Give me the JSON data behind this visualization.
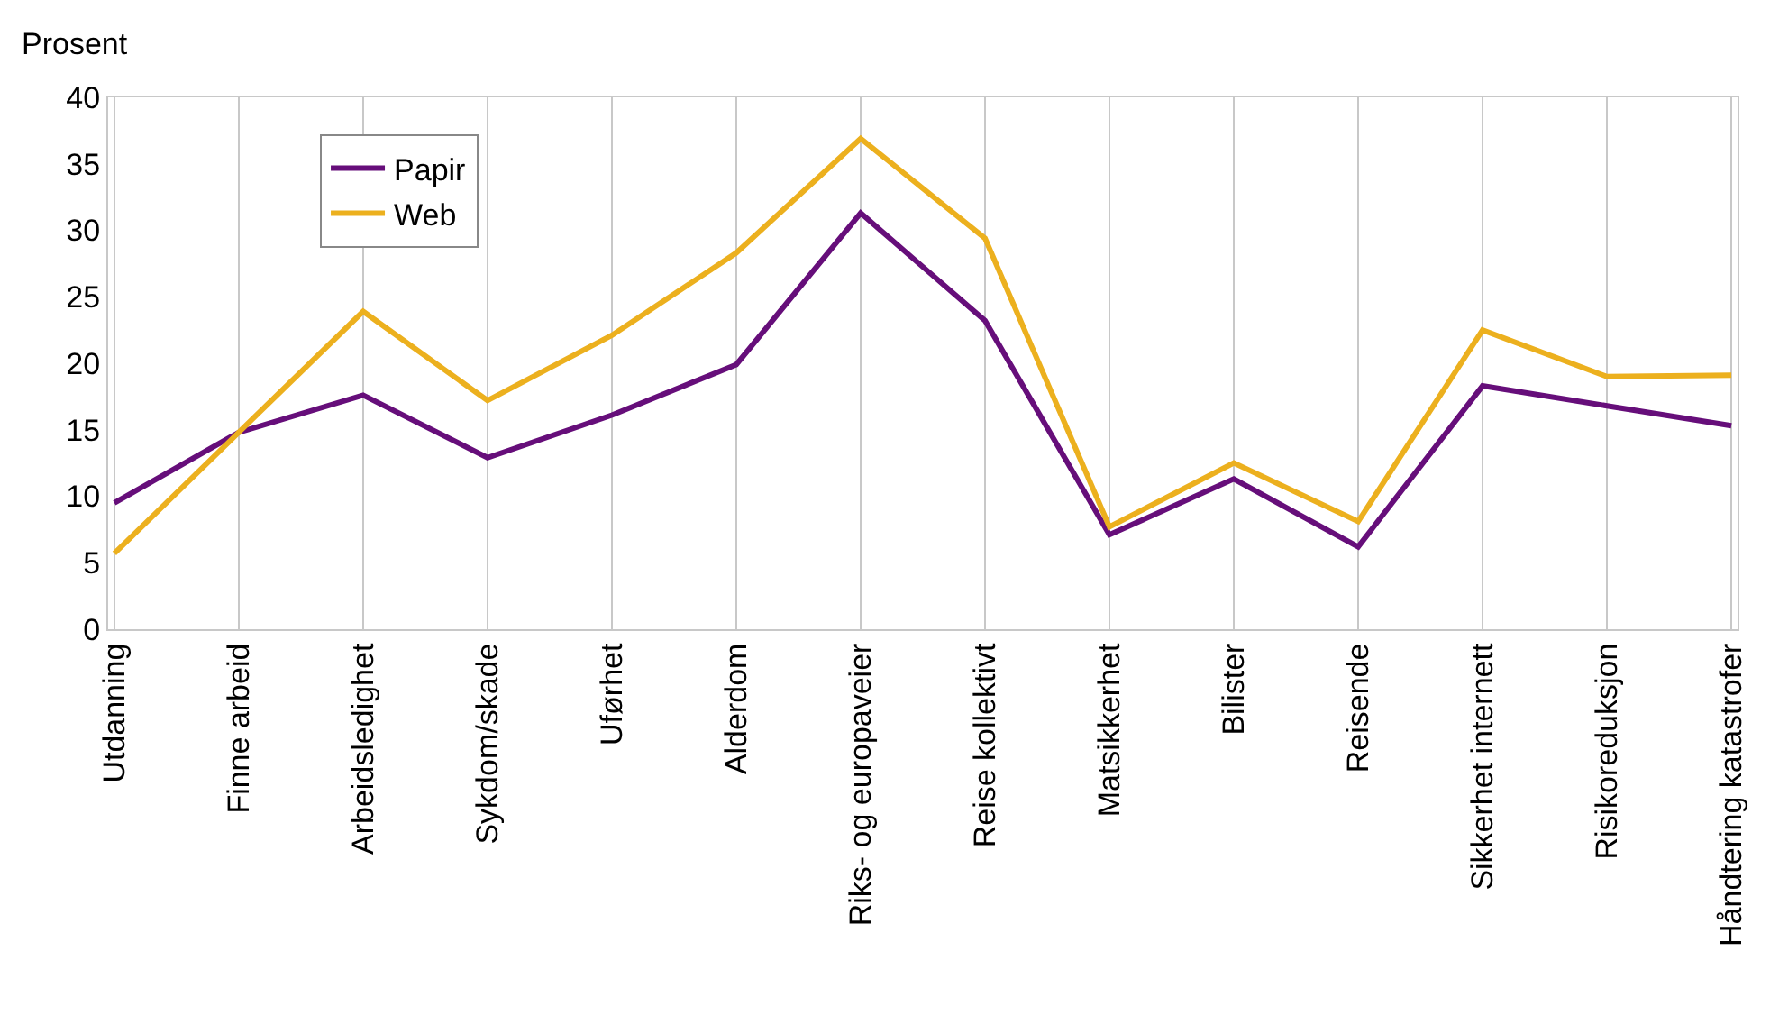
{
  "chart_data": {
    "type": "line",
    "ylabel": "Prosent",
    "categories": [
      "Utdanning",
      "Finne arbeid",
      "Arbeidsledighet",
      "Sykdom/skade",
      "Uførhet",
      "Alderdom",
      "Riks- og europaveier",
      "Reise kollektivt",
      "Matsikkerhet",
      "Bilister",
      "Reisende",
      "Sikkerhet internett",
      "Risikoreduksjon",
      "Håndtering katastrofer"
    ],
    "series": [
      {
        "name": "Papir",
        "color": "#660e7a",
        "values": [
          9.5,
          14.8,
          17.6,
          12.9,
          16.1,
          19.9,
          31.3,
          23.2,
          7.1,
          11.3,
          6.2,
          18.3,
          16.8,
          15.3
        ]
      },
      {
        "name": "Web",
        "color": "#ecb01e",
        "values": [
          5.7,
          14.8,
          23.9,
          17.2,
          22.1,
          28.3,
          36.9,
          29.4,
          7.7,
          12.5,
          8.1,
          22.5,
          19.0,
          19.1
        ]
      }
    ],
    "ylim": [
      0,
      40
    ],
    "yticks": [
      0,
      5,
      10,
      15,
      20,
      25,
      30,
      35,
      40
    ],
    "grid": "x",
    "legend": "top left",
    "marker": "none",
    "line_style": "solid"
  }
}
